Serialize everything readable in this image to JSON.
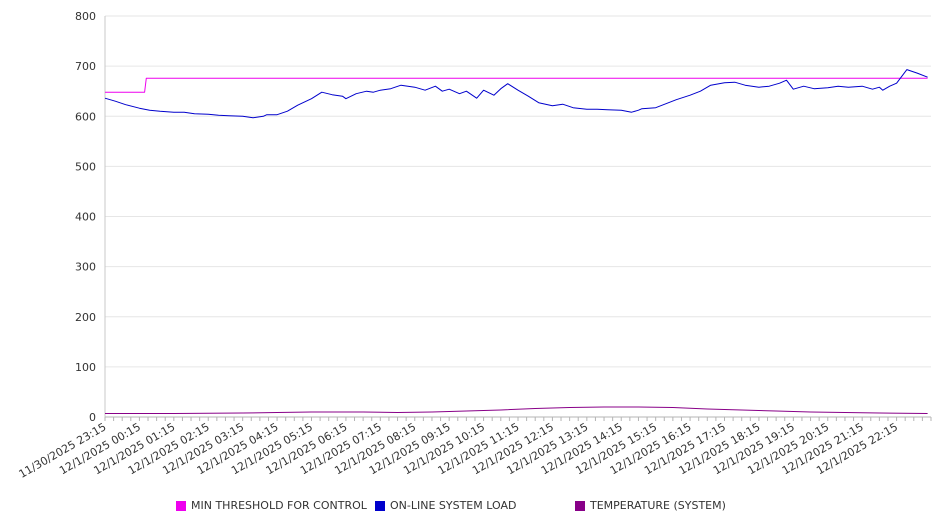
{
  "chart_data": {
    "type": "line",
    "x": [
      "11/30/2025 23:15",
      "12/1/2025 00:15",
      "12/1/2025 01:15",
      "12/1/2025 02:15",
      "12/1/2025 03:15",
      "12/1/2025 04:15",
      "12/1/2025 05:15",
      "12/1/2025 06:15",
      "12/1/2025 07:15",
      "12/1/2025 08:15",
      "12/1/2025 09:15",
      "12/1/2025 10:15",
      "12/1/2025 11:15",
      "12/1/2025 12:15",
      "12/1/2025 13:15",
      "12/1/2025 14:15",
      "12/1/2025 15:15",
      "12/1/2025 16:15",
      "12/1/2025 17:15",
      "12/1/2025 18:15",
      "12/1/2025 19:15",
      "12/1/2025 20:15",
      "12/1/2025 21:15",
      "12/1/2025 22:15"
    ],
    "ylim": [
      0,
      800
    ],
    "yticks": [
      0,
      100,
      200,
      300,
      400,
      500,
      600,
      700,
      800
    ],
    "grid": true,
    "legend_position": "bottom",
    "series": [
      {
        "name": "MIN THRESHOLD FOR CONTROL",
        "color": "#ee00ee",
        "x": [
          0,
          1.15,
          1.2,
          23.9
        ],
        "values": [
          648,
          648,
          676,
          676
        ]
      },
      {
        "name": "ON-LINE SYSTEM LOAD",
        "color": "#0000cc",
        "x": [
          0,
          0.3,
          0.6,
          1,
          1.3,
          1.6,
          2,
          2.3,
          2.6,
          3,
          3.3,
          3.6,
          4,
          4.3,
          4.6,
          4.7,
          5,
          5.3,
          5.6,
          6,
          6.3,
          6.6,
          6.9,
          7,
          7.3,
          7.6,
          7.8,
          8,
          8.3,
          8.6,
          9,
          9.3,
          9.6,
          9.8,
          10,
          10.3,
          10.5,
          10.8,
          11,
          11.3,
          11.5,
          11.7,
          12,
          12.3,
          12.6,
          13,
          13.3,
          13.6,
          14,
          14.3,
          14.6,
          15,
          15.3,
          15.5,
          15.6,
          16,
          16.3,
          16.6,
          17,
          17.3,
          17.6,
          18,
          18.3,
          18.6,
          19,
          19.3,
          19.6,
          19.8,
          20,
          20.3,
          20.6,
          21,
          21.3,
          21.6,
          22,
          22.3,
          22.5,
          22.6,
          22.8,
          23,
          23.3,
          23.6,
          23.9
        ],
        "values": [
          636,
          630,
          623,
          616,
          612,
          610,
          608,
          608,
          605,
          604,
          602,
          601,
          600,
          597,
          600,
          603,
          603,
          610,
          622,
          635,
          648,
          643,
          640,
          635,
          645,
          650,
          648,
          652,
          655,
          662,
          658,
          652,
          660,
          650,
          654,
          645,
          650,
          636,
          652,
          642,
          655,
          665,
          652,
          640,
          627,
          621,
          624,
          617,
          614,
          614,
          613,
          612,
          608,
          612,
          615,
          617,
          625,
          633,
          642,
          650,
          662,
          667,
          668,
          662,
          658,
          660,
          666,
          672,
          654,
          660,
          655,
          657,
          660,
          658,
          660,
          654,
          658,
          652,
          660,
          666,
          693,
          686,
          678
        ]
      },
      {
        "name": "TEMPERATURE (SYSTEM)",
        "color": "#880088",
        "x": [
          0,
          2,
          4,
          5,
          6,
          7.5,
          8.5,
          9.5,
          10.5,
          11.5,
          12.5,
          13.5,
          14.5,
          15.5,
          16.5,
          17.5,
          18.5,
          19.5,
          20.5,
          21.5,
          22.5,
          23.9
        ],
        "values": [
          7,
          7,
          8,
          9,
          10,
          10,
          9,
          10,
          12,
          14,
          17,
          19,
          20,
          20,
          19,
          16,
          14,
          12,
          10,
          9,
          8,
          7
        ]
      }
    ]
  }
}
